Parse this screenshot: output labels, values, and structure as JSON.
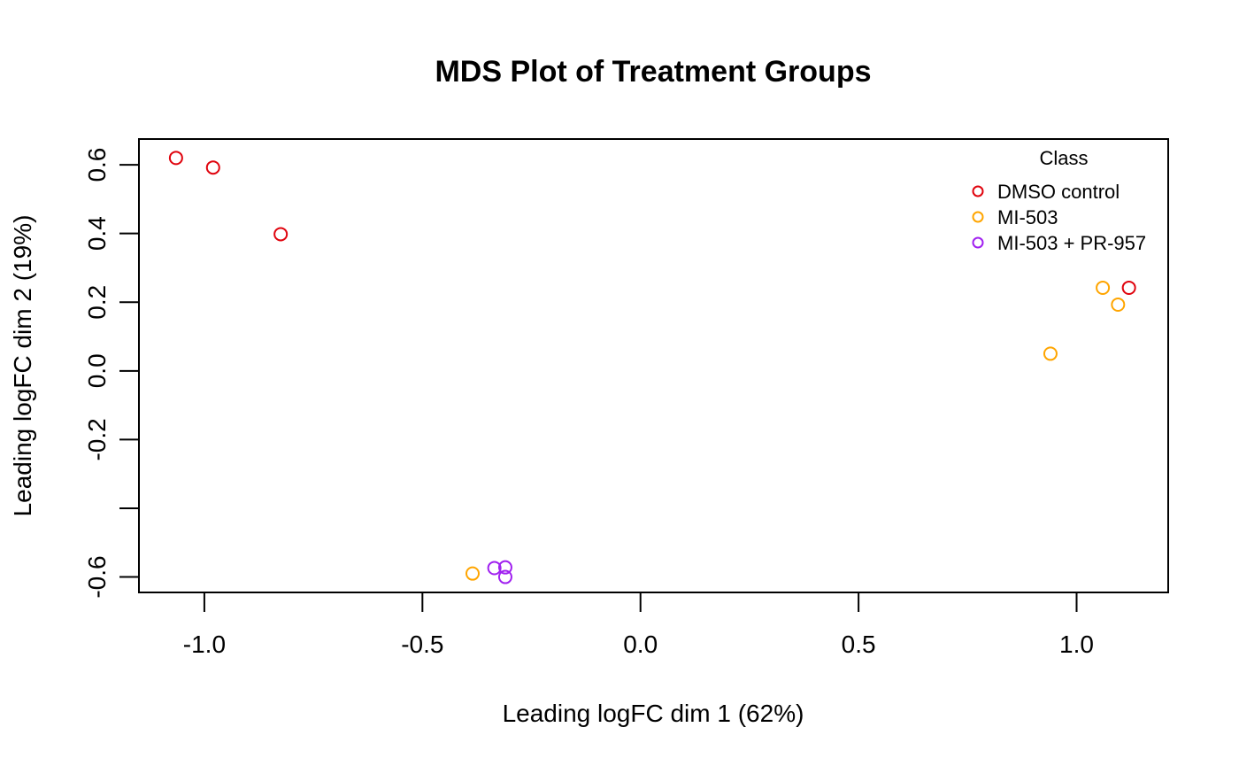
{
  "chart_data": {
    "type": "scatter",
    "title": "MDS Plot of Treatment Groups",
    "xlabel": "Leading logFC dim 1 (62%)",
    "ylabel": "Leading logFC dim 2 (19%)",
    "xlim": [
      -1.15,
      1.21
    ],
    "ylim": [
      -0.645,
      0.675
    ],
    "x_ticks": [
      {
        "value": -1.0,
        "label": "-1.0"
      },
      {
        "value": -0.5,
        "label": "-0.5"
      },
      {
        "value": 0.0,
        "label": "0.0"
      },
      {
        "value": 0.5,
        "label": "0.5"
      },
      {
        "value": 1.0,
        "label": "1.0"
      }
    ],
    "y_ticks": [
      {
        "value": -0.6,
        "label": "-0.6"
      },
      {
        "value": -0.4,
        "label": ""
      },
      {
        "value": -0.2,
        "label": "-0.2"
      },
      {
        "value": 0.0,
        "label": "0.0"
      },
      {
        "value": 0.2,
        "label": "0.2"
      },
      {
        "value": 0.4,
        "label": "0.4"
      },
      {
        "value": 0.6,
        "label": "0.6"
      }
    ],
    "grid": false,
    "legend": {
      "title": "Class",
      "placement": "top-right",
      "entries": [
        "DMSO control",
        "MI-503",
        "MI-503 + PR-957"
      ]
    },
    "series": [
      {
        "name": "DMSO control",
        "color": "#e0040e",
        "points": [
          {
            "x": -1.065,
            "y": 0.62
          },
          {
            "x": -0.98,
            "y": 0.592
          },
          {
            "x": -0.825,
            "y": 0.398
          },
          {
            "x": 1.12,
            "y": 0.242
          }
        ]
      },
      {
        "name": "MI-503",
        "color": "#ffa500",
        "points": [
          {
            "x": 1.06,
            "y": 0.242
          },
          {
            "x": 1.095,
            "y": 0.193
          },
          {
            "x": 0.94,
            "y": 0.05
          },
          {
            "x": -0.385,
            "y": -0.59
          }
        ]
      },
      {
        "name": "MI-503 + PR-957",
        "color": "#a020f0",
        "points": [
          {
            "x": -0.335,
            "y": -0.574
          },
          {
            "x": -0.31,
            "y": -0.572
          },
          {
            "x": -0.31,
            "y": -0.6
          }
        ]
      }
    ]
  }
}
